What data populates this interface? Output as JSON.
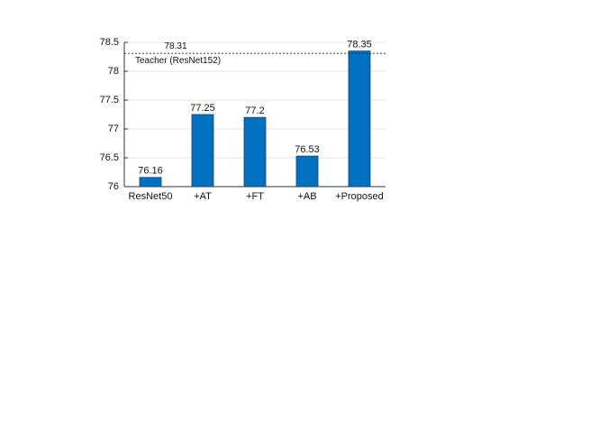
{
  "chart_data": {
    "type": "bar",
    "categories": [
      "ResNet50",
      "+AT",
      "+FT",
      "+AB",
      "+Proposed"
    ],
    "values": [
      76.16,
      77.25,
      77.2,
      76.53,
      78.35
    ],
    "color": "#0070c0",
    "ylim": [
      76,
      78.5
    ],
    "yticks": [
      76,
      76.5,
      77,
      77.5,
      78,
      78.5
    ],
    "grid": true,
    "reference": {
      "value": 78.31,
      "label": "Teacher (ResNet152)"
    }
  }
}
